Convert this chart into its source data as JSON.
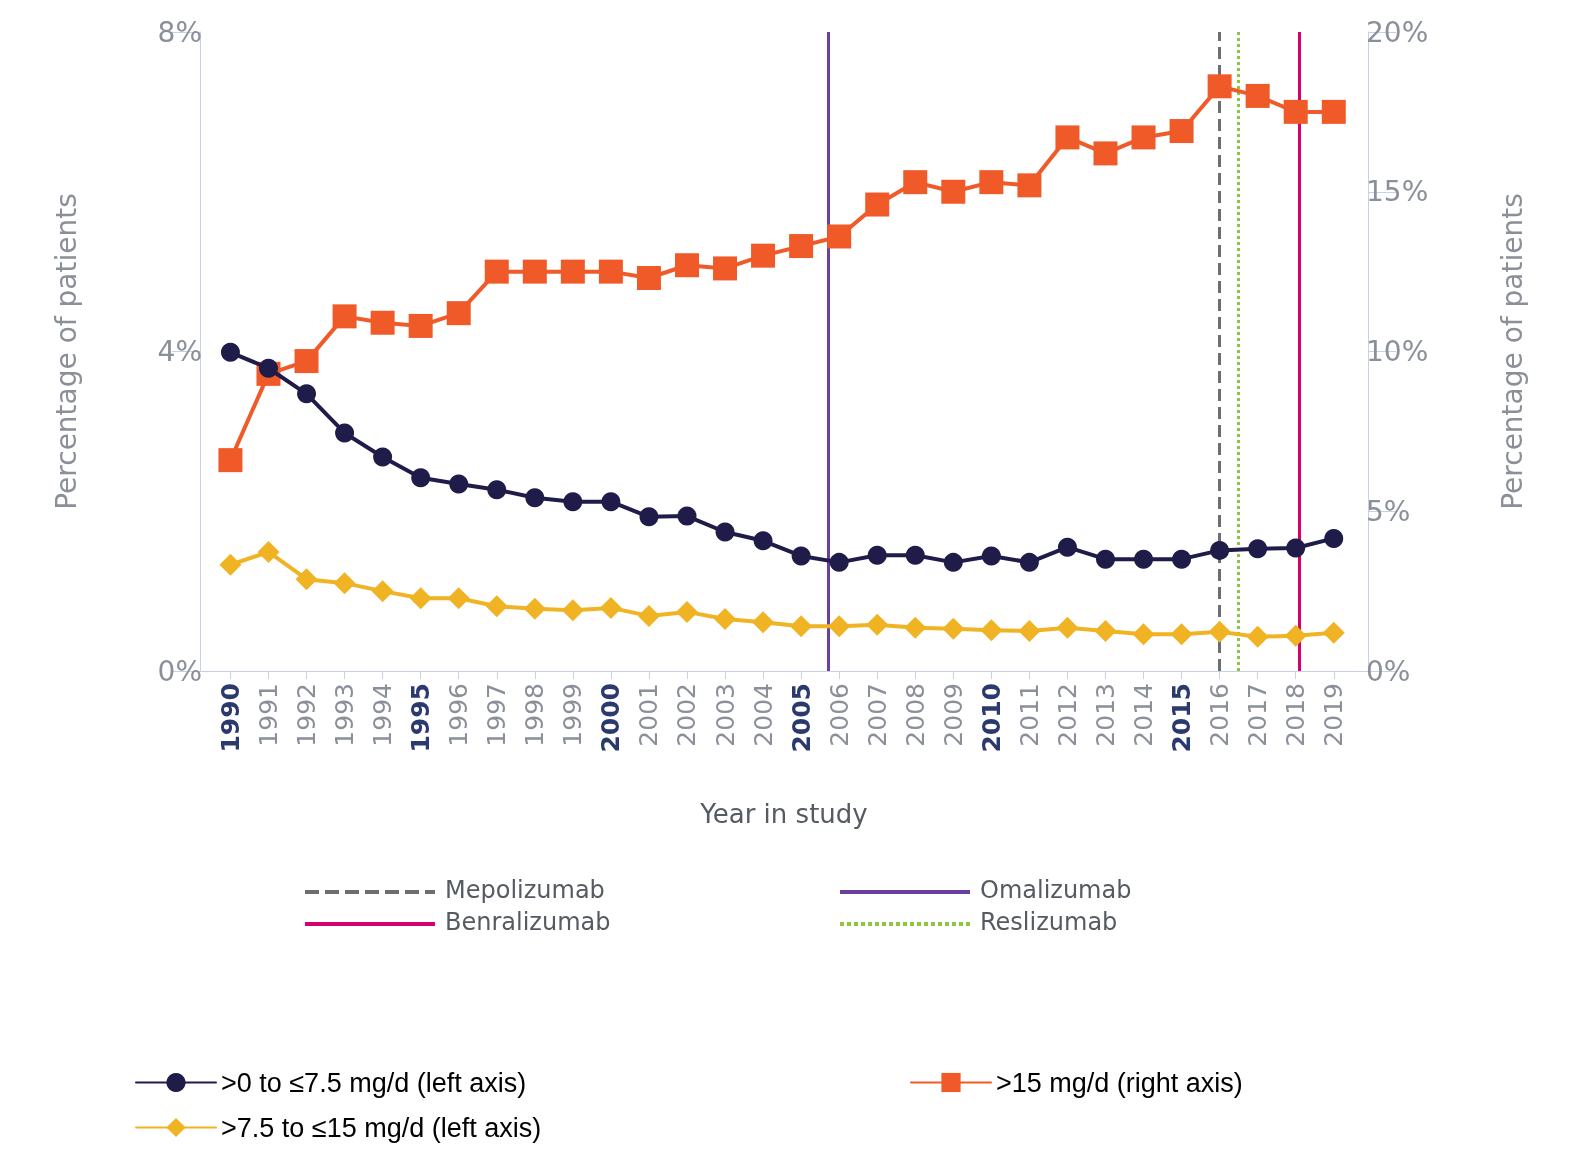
{
  "chart_data": {
    "type": "line",
    "xlabel": "Year in study",
    "ylabel": "Percentage of patients",
    "y2label": "Percentage of patients",
    "x": [
      1990,
      1991,
      1992,
      1993,
      1994,
      1995,
      1996,
      1997,
      1998,
      1999,
      2000,
      2001,
      2002,
      2003,
      2004,
      2005,
      2006,
      2007,
      2008,
      2009,
      2010,
      2011,
      2012,
      2013,
      2014,
      2015,
      2016,
      2017,
      2018,
      2019
    ],
    "xlim": [
      1989.2,
      2019.9
    ],
    "xticks": [
      1990,
      1991,
      1992,
      1993,
      1994,
      1995,
      1996,
      1997,
      1998,
      1999,
      2000,
      2001,
      2002,
      2003,
      2004,
      2005,
      2006,
      2007,
      2008,
      2009,
      2010,
      2011,
      2012,
      2013,
      2014,
      2015,
      2016,
      2017,
      2018,
      2019
    ],
    "ylim": [
      0,
      8
    ],
    "yticks": [
      {
        "value": 0,
        "label": "0%"
      },
      {
        "value": 4,
        "label": "4%"
      },
      {
        "value": 8,
        "label": "8%"
      }
    ],
    "y2lim": [
      0,
      20
    ],
    "y2ticks": [
      {
        "value": 0,
        "label": "0%"
      },
      {
        "value": 5,
        "label": "5%"
      },
      {
        "value": 10,
        "label": "10%"
      },
      {
        "value": 15,
        "label": "15%"
      },
      {
        "value": 20,
        "label": "20%"
      }
    ],
    "grid": false,
    "legend": "bottom",
    "line_style": "solid",
    "series": [
      {
        "name": ">0 to ≤7.5 mg/d (left axis)",
        "color": "#1f1c4a",
        "marker": "circle",
        "values": [
          3.99,
          3.79,
          3.47,
          2.98,
          2.68,
          2.42,
          2.34,
          2.27,
          2.17,
          2.12,
          2.12,
          1.93,
          1.94,
          1.74,
          1.63,
          1.44,
          1.36,
          1.45,
          1.45,
          1.36,
          1.44,
          1.36,
          1.55,
          1.4,
          1.4,
          1.4,
          1.51,
          1.53,
          1.54,
          1.66
        ]
      },
      {
        "name": ">7.5 to ≤15 mg/d (left axis)",
        "color": "#f0b323",
        "marker": "diamond",
        "values": [
          1.33,
          1.49,
          1.15,
          1.1,
          1.0,
          0.91,
          0.91,
          0.81,
          0.78,
          0.76,
          0.79,
          0.69,
          0.74,
          0.65,
          0.61,
          0.56,
          0.56,
          0.58,
          0.54,
          0.53,
          0.51,
          0.5,
          0.54,
          0.5,
          0.46,
          0.46,
          0.49,
          0.43,
          0.44,
          0.48
        ]
      },
      {
        "name": ">15 mg/d (right axis)",
        "color": "#f05a28",
        "marker": "square",
        "axis": "y2",
        "values": [
          6.6,
          9.3,
          9.7,
          11.1,
          10.9,
          10.8,
          11.2,
          12.5,
          12.5,
          12.5,
          12.5,
          12.3,
          12.7,
          12.6,
          13.0,
          13.3,
          13.6,
          14.6,
          15.3,
          15.0,
          15.3,
          15.2,
          16.7,
          16.2,
          16.7,
          16.9,
          18.3,
          18.0,
          17.5,
          17.5
        ]
      }
    ],
    "ref_lines": [
      {
        "axis": "x",
        "value": 2016,
        "label": "Mepolizumab",
        "color": "#6d6e71",
        "line_style": "dashed"
      },
      {
        "axis": "x",
        "value": 2005.7,
        "label": "Omalizumab",
        "color": "#6b3fa0",
        "line_style": "solid"
      },
      {
        "axis": "x",
        "value": 2018.1,
        "label": "Benralizumab",
        "color": "#d6006f",
        "line_style": "solid"
      },
      {
        "axis": "x",
        "value": 2016.5,
        "label": "Reslizumab",
        "color": "#8dc63f",
        "line_style": "dotted"
      }
    ]
  }
}
